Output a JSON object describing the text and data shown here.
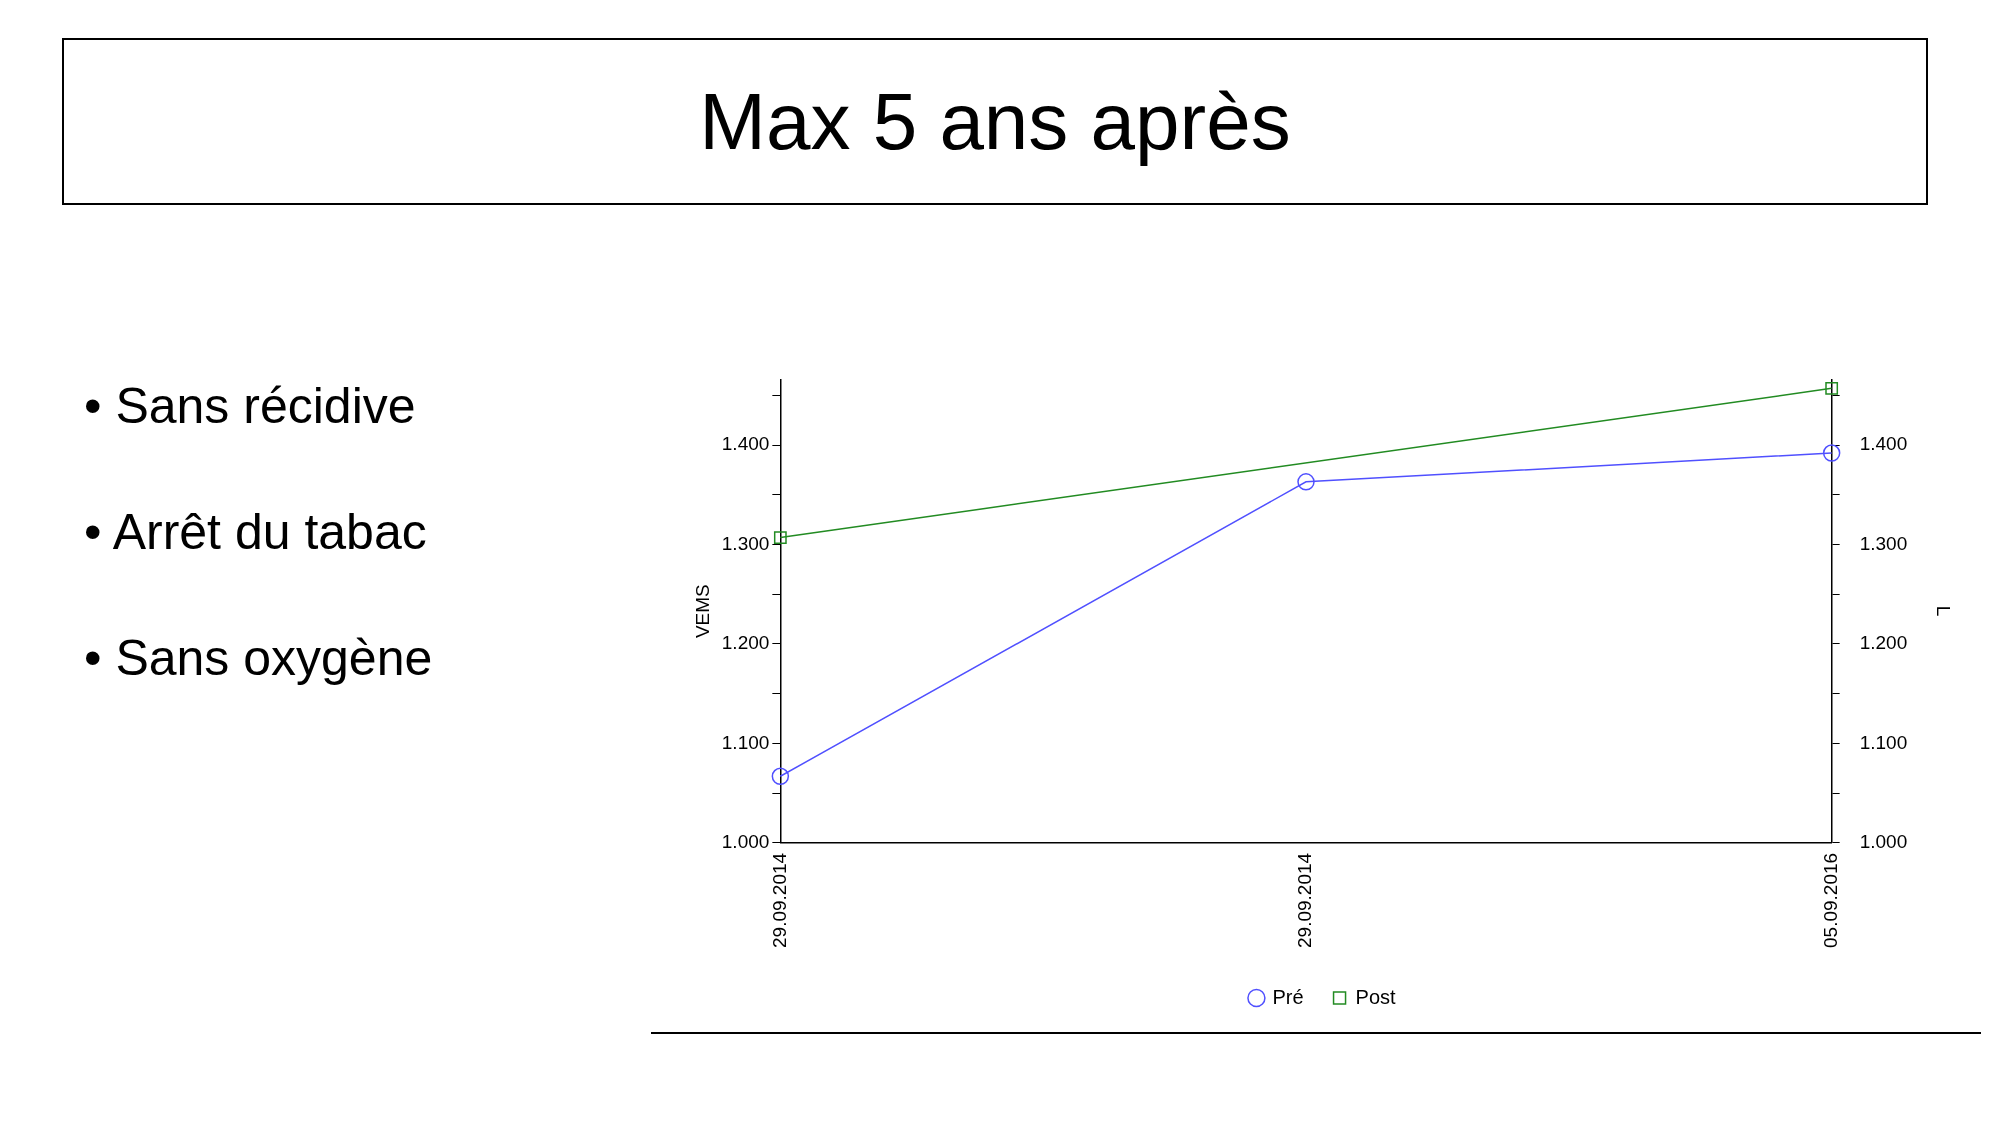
{
  "chart_data": {
    "type": "line",
    "title": "Max 5 ans après",
    "annotations": [
      "• Sans récidive",
      "• Arrêt du tabac",
      "• Sans oxygène"
    ],
    "categories": [
      "29.09.2014",
      "29.09.2014",
      "05.09.2016"
    ],
    "ylabel": "VEMS",
    "y2label": "L",
    "ylim": [
      1.0,
      1.466
    ],
    "y2lim": [
      1.0,
      1.466
    ],
    "yticks": [
      {
        "value": 1.0,
        "label": "1.000"
      },
      {
        "value": 1.05,
        "label": null
      },
      {
        "value": 1.1,
        "label": "1.100"
      },
      {
        "value": 1.15,
        "label": null
      },
      {
        "value": 1.2,
        "label": "1.200"
      },
      {
        "value": 1.25,
        "label": null
      },
      {
        "value": 1.3,
        "label": "1.300"
      },
      {
        "value": 1.35,
        "label": null
      },
      {
        "value": 1.4,
        "label": "1.400"
      },
      {
        "value": 1.45,
        "label": null
      }
    ],
    "y2ticks": [
      {
        "value": 1.0,
        "label": "1.000"
      },
      {
        "value": 1.05,
        "label": null
      },
      {
        "value": 1.1,
        "label": "1.100"
      },
      {
        "value": 1.15,
        "label": null
      },
      {
        "value": 1.2,
        "label": "1.200"
      },
      {
        "value": 1.25,
        "label": null
      },
      {
        "value": 1.3,
        "label": "1.300"
      },
      {
        "value": 1.35,
        "label": null
      },
      {
        "value": 1.4,
        "label": "1.400"
      },
      {
        "value": 1.45,
        "label": null
      }
    ],
    "series": [
      {
        "name": "Pré",
        "color": "#5050ff",
        "marker": "circle",
        "values": [
          1.067,
          1.363,
          1.392
        ]
      },
      {
        "name": "Post",
        "color": "#228b22",
        "marker": "square",
        "values": [
          1.307,
          null,
          1.457
        ]
      }
    ],
    "legend": "bottom",
    "grid": false
  }
}
